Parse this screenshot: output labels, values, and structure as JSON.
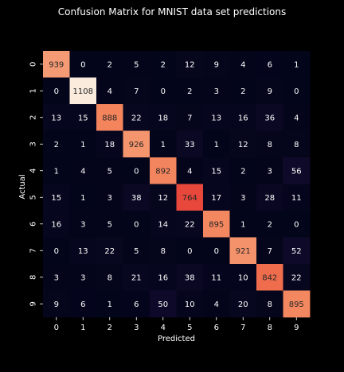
{
  "chart_data": {
    "type": "heatmap",
    "title": "Confusion Matrix for MNIST data set predictions",
    "xlabel": "Predicted",
    "ylabel": "Actual",
    "x_categories": [
      "0",
      "1",
      "2",
      "3",
      "4",
      "5",
      "6",
      "7",
      "8",
      "9"
    ],
    "y_categories": [
      "0",
      "1",
      "2",
      "3",
      "4",
      "5",
      "6",
      "7",
      "8",
      "9"
    ],
    "values": [
      [
        939,
        0,
        2,
        5,
        2,
        12,
        9,
        4,
        6,
        1
      ],
      [
        0,
        1108,
        4,
        7,
        0,
        2,
        3,
        2,
        9,
        0
      ],
      [
        13,
        15,
        888,
        22,
        18,
        7,
        13,
        16,
        36,
        4
      ],
      [
        2,
        1,
        18,
        926,
        1,
        33,
        1,
        12,
        8,
        8
      ],
      [
        1,
        4,
        5,
        0,
        892,
        4,
        15,
        2,
        3,
        56
      ],
      [
        15,
        1,
        3,
        38,
        12,
        764,
        17,
        3,
        28,
        11
      ],
      [
        16,
        3,
        5,
        0,
        14,
        22,
        895,
        1,
        2,
        0
      ],
      [
        0,
        13,
        22,
        5,
        8,
        0,
        0,
        921,
        7,
        52
      ],
      [
        3,
        3,
        8,
        21,
        16,
        38,
        11,
        10,
        842,
        22
      ],
      [
        9,
        6,
        1,
        6,
        50,
        10,
        4,
        20,
        8,
        895
      ]
    ],
    "value_range": [
      0,
      1108
    ],
    "colormap": "rocket",
    "background_color": "#000000"
  }
}
